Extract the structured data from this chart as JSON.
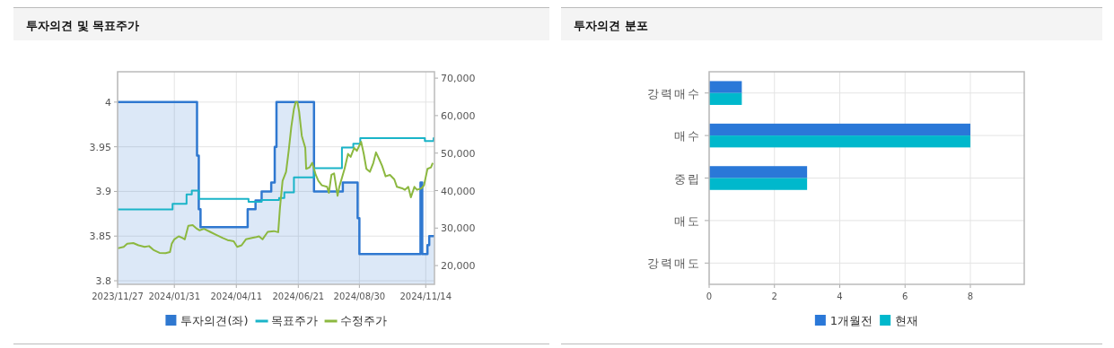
{
  "chart_data": [
    {
      "type": "line",
      "title": "투자의견 및 목표주가",
      "xlim": [
        "2023-11-27",
        "2024-11-24"
      ],
      "xticks": [
        {
          "value": "2023-11-27",
          "label": "2023/11/27"
        },
        {
          "value": "2024-01-31",
          "label": "2024/01/31"
        },
        {
          "value": "2024-04-11",
          "label": "2024/04/11"
        },
        {
          "value": "2024-06-21",
          "label": "2024/06/21"
        },
        {
          "value": "2024-08-30",
          "label": "2024/08/30"
        },
        {
          "value": "2024-11-14",
          "label": "2024/11/14"
        }
      ],
      "ylim": [
        3.796,
        4.034
      ],
      "yticks": [
        3.8,
        3.85,
        3.9,
        3.95,
        4
      ],
      "y2lim": [
        15000,
        71700
      ],
      "y2ticks": [
        {
          "value": 20000,
          "label": "20,000"
        },
        {
          "value": 30000,
          "label": "30,000"
        },
        {
          "value": 40000,
          "label": "40,000"
        },
        {
          "value": 50000,
          "label": "50,000"
        },
        {
          "value": 60000,
          "label": "60,000"
        },
        {
          "value": 70000,
          "label": "70,000"
        }
      ],
      "grid": true,
      "legend": "bottom",
      "series": [
        {
          "name": "투자의견(좌)",
          "type": "area",
          "color": "#2f78d0",
          "x": [
            "2023-11-27",
            "2024-02-26",
            "2024-02-26",
            "2024-02-28",
            "2024-02-28",
            "2024-03-01",
            "2024-03-01",
            "2024-04-24",
            "2024-04-24",
            "2024-05-03",
            "2024-05-03",
            "2024-05-10",
            "2024-05-10",
            "2024-05-21",
            "2024-05-21",
            "2024-05-25",
            "2024-05-25",
            "2024-05-27",
            "2024-05-27",
            "2024-07-09",
            "2024-07-09",
            "2024-08-11",
            "2024-08-11",
            "2024-08-28",
            "2024-08-28",
            "2024-08-30",
            "2024-08-30",
            "2024-11-08",
            "2024-11-08",
            "2024-11-10",
            "2024-11-10",
            "2024-11-16",
            "2024-11-16",
            "2024-11-18",
            "2024-11-18",
            "2024-11-24"
          ],
          "values": [
            4.0,
            4.0,
            3.94,
            3.94,
            3.88,
            3.88,
            3.86,
            3.86,
            3.88,
            3.88,
            3.89,
            3.89,
            3.9,
            3.9,
            3.91,
            3.91,
            3.95,
            3.95,
            4.0,
            4.0,
            3.9,
            3.9,
            3.91,
            3.91,
            3.87,
            3.87,
            3.83,
            3.83,
            3.91,
            3.91,
            3.83,
            3.83,
            3.84,
            3.84,
            3.85,
            3.85
          ]
        },
        {
          "name": "목표주가",
          "type": "step",
          "axis": "y2",
          "color": "#1ab4c8",
          "x": [
            "2023-11-27",
            "2024-01-29",
            "2024-02-14",
            "2024-02-20",
            "2024-02-28",
            "2024-04-25",
            "2024-05-10",
            "2024-05-30",
            "2024-06-05",
            "2024-06-16",
            "2024-07-09",
            "2024-08-10",
            "2024-08-23",
            "2024-08-31",
            "2024-11-13",
            "2024-11-23",
            "2024-11-24"
          ],
          "values": [
            35000,
            36500,
            39000,
            40000,
            37800,
            37000,
            37500,
            38000,
            39500,
            43500,
            46000,
            51500,
            52500,
            54000,
            53200,
            54000,
            54000
          ]
        },
        {
          "name": "수정주가",
          "axis": "y2",
          "color": "#8cb840",
          "x": [
            "2023-11-27",
            "2023-12-04",
            "2023-12-08",
            "2023-12-15",
            "2023-12-21",
            "2023-12-28",
            "2024-01-02",
            "2024-01-07",
            "2024-01-14",
            "2024-01-21",
            "2024-01-26",
            "2024-01-28",
            "2024-01-31",
            "2024-02-05",
            "2024-02-09",
            "2024-02-12",
            "2024-02-16",
            "2024-02-21",
            "2024-02-26",
            "2024-02-29",
            "2024-03-05",
            "2024-03-12",
            "2024-03-19",
            "2024-03-26",
            "2024-04-01",
            "2024-04-08",
            "2024-04-12",
            "2024-04-17",
            "2024-04-22",
            "2024-04-29",
            "2024-05-04",
            "2024-05-07",
            "2024-05-11",
            "2024-05-17",
            "2024-05-24",
            "2024-05-29",
            "2024-05-31",
            "2024-06-03",
            "2024-06-07",
            "2024-06-10",
            "2024-06-13",
            "2024-06-16",
            "2024-06-18",
            "2024-06-20",
            "2024-06-22",
            "2024-06-25",
            "2024-06-29",
            "2024-06-30",
            "2024-07-04",
            "2024-07-07",
            "2024-07-11",
            "2024-07-14",
            "2024-07-18",
            "2024-07-24",
            "2024-07-26",
            "2024-07-29",
            "2024-08-01",
            "2024-08-05",
            "2024-08-07",
            "2024-08-10",
            "2024-08-13",
            "2024-08-17",
            "2024-08-20",
            "2024-08-24",
            "2024-08-27",
            "2024-09-01",
            "2024-09-04",
            "2024-09-07",
            "2024-09-11",
            "2024-09-15",
            "2024-09-18",
            "2024-09-22",
            "2024-09-25",
            "2024-09-29",
            "2024-10-04",
            "2024-10-09",
            "2024-10-12",
            "2024-10-18",
            "2024-10-21",
            "2024-10-25",
            "2024-10-28",
            "2024-11-01",
            "2024-11-04",
            "2024-11-09",
            "2024-11-12",
            "2024-11-16",
            "2024-11-20",
            "2024-11-22"
          ],
          "values": [
            24600,
            25000,
            25800,
            26000,
            25400,
            25000,
            25200,
            24200,
            23400,
            23300,
            23600,
            25800,
            27000,
            27800,
            27400,
            27000,
            30600,
            30800,
            29800,
            29400,
            29800,
            29000,
            28200,
            27400,
            26800,
            26500,
            25000,
            25400,
            27000,
            27400,
            27600,
            27800,
            27000,
            29000,
            29200,
            28900,
            35400,
            42600,
            45000,
            50600,
            57000,
            61800,
            63600,
            63600,
            61000,
            54600,
            51400,
            45800,
            46200,
            47400,
            44200,
            42600,
            41400,
            41000,
            39400,
            44200,
            44600,
            38600,
            41000,
            43400,
            45800,
            49800,
            49000,
            51400,
            50600,
            53000,
            49800,
            45800,
            45000,
            47400,
            50200,
            48200,
            46600,
            43800,
            44200,
            43000,
            41000,
            40600,
            40200,
            41000,
            38200,
            41000,
            40200,
            40600,
            41400,
            45800,
            46200,
            47400
          ]
        }
      ]
    },
    {
      "type": "bar",
      "title": "투자의견 분포",
      "orientation": "horizontal",
      "categories": [
        "강력매수",
        "매수",
        "중립",
        "매도",
        "강력매도"
      ],
      "xlim": [
        0,
        9.65
      ],
      "xticks": [
        0,
        2,
        4,
        6,
        8
      ],
      "grid": true,
      "legend": "bottom",
      "series": [
        {
          "name": "1개월전",
          "color": "#2a78d8",
          "values": [
            1,
            8,
            3,
            0,
            0
          ]
        },
        {
          "name": "현재",
          "color": "#00b8cc",
          "values": [
            1,
            8,
            3,
            0,
            0
          ]
        }
      ]
    }
  ]
}
